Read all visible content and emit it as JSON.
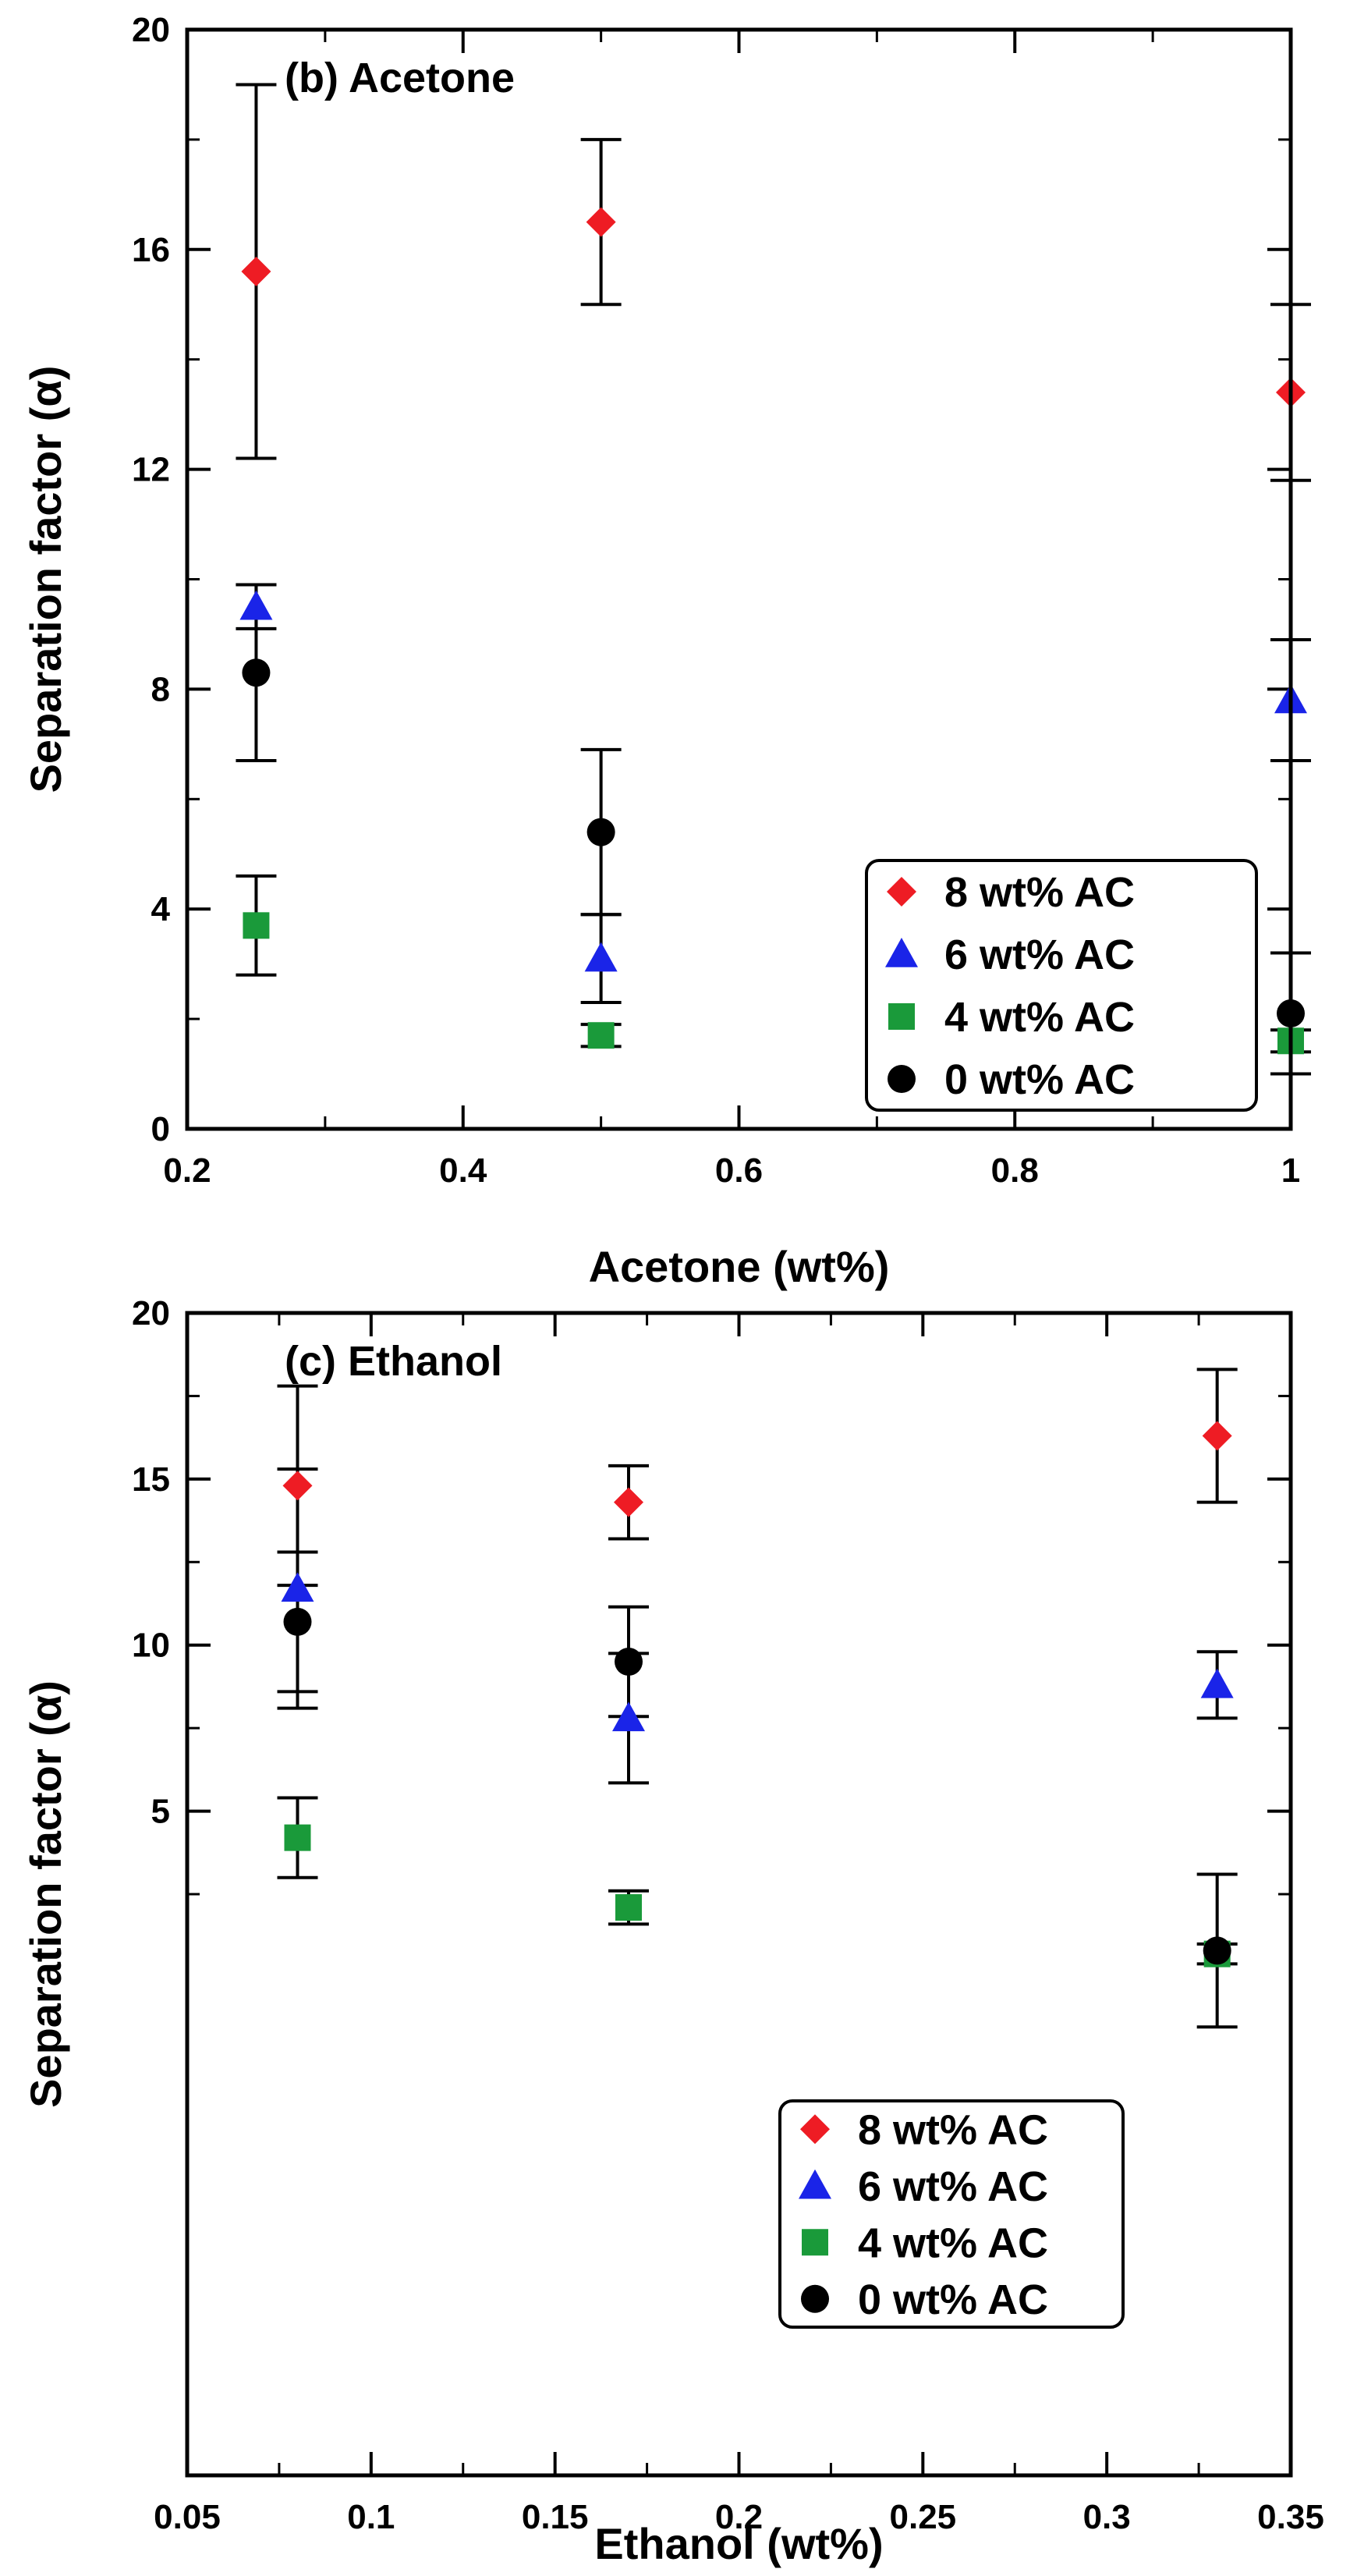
{
  "colors": {
    "8 wt% AC": "#ee1c24",
    "6 wt% AC": "#1a24e8",
    "4 wt% AC": "#1a9a3a",
    "0 wt% AC": "#000000"
  },
  "markers": {
    "8 wt% AC": "diamond",
    "6 wt% AC": "triangle",
    "4 wt% AC": "square",
    "0 wt% AC": "circle"
  },
  "chart_data": [
    {
      "type": "scatter",
      "panel_label": "(b) Acetone",
      "xlabel": "Acetone (wt%)",
      "ylabel": "Separation factor (α)",
      "xlim": [
        0.2,
        1.0
      ],
      "ylim": [
        0,
        20
      ],
      "xticks": [
        0.2,
        0.4,
        0.6,
        0.8,
        1.0
      ],
      "xtick_labels": [
        "0.2",
        "0.4",
        "0.6",
        "0.8",
        "1"
      ],
      "yticks": [
        0,
        4,
        8,
        12,
        16,
        20
      ],
      "ytick_labels": [
        "0",
        "4",
        "8",
        "12",
        "16",
        "20"
      ],
      "legend": [
        "8 wt% AC",
        "6 wt% AC",
        "4 wt% AC",
        "0 wt% AC"
      ],
      "legend_position": "bottom-right",
      "series": [
        {
          "name": "8 wt% AC",
          "x": [
            0.25,
            0.5,
            1.0
          ],
          "y": [
            15.6,
            16.5,
            13.4
          ],
          "err": [
            3.4,
            1.5,
            1.6
          ]
        },
        {
          "name": "6 wt% AC",
          "x": [
            0.25,
            0.5,
            1.0
          ],
          "y": [
            9.5,
            3.1,
            7.8
          ],
          "err": [
            0.4,
            0.8,
            1.1
          ]
        },
        {
          "name": "4 wt% AC",
          "x": [
            0.25,
            0.5,
            1.0
          ],
          "y": [
            3.7,
            1.7,
            1.6
          ],
          "err": [
            0.9,
            0.2,
            0.2
          ]
        },
        {
          "name": "0 wt% AC",
          "x": [
            0.25,
            0.5,
            1.0
          ],
          "y": [
            8.3,
            5.4,
            2.1
          ],
          "err": [
            1.6,
            1.5,
            1.1
          ]
        }
      ]
    },
    {
      "type": "scatter",
      "panel_label": "(c) Ethanol",
      "xlabel": "Ethanol (wt%)",
      "ylabel": "Separation factor (α)",
      "xlim": [
        0.05,
        0.35
      ],
      "ylim": [
        -15,
        20
      ],
      "xticks": [
        0.05,
        0.1,
        0.15,
        0.2,
        0.25,
        0.3,
        0.35
      ],
      "xtick_labels": [
        "0.05",
        "0.1",
        "0.15",
        "0.2",
        "0.25",
        "0.3",
        "0.35"
      ],
      "yticks": [
        5,
        10,
        15,
        20
      ],
      "ytick_labels": [
        "5",
        "10",
        "15",
        "20"
      ],
      "legend": [
        "8 wt% AC",
        "6 wt% AC",
        "4 wt% AC",
        "0 wt% AC"
      ],
      "legend_position": "bottom-right",
      "series": [
        {
          "name": "8 wt% AC",
          "x": [
            0.08,
            0.17,
            0.33
          ],
          "y": [
            14.8,
            14.3,
            16.3
          ],
          "err": [
            3.0,
            1.1,
            2.0
          ]
        },
        {
          "name": "6 wt% AC",
          "x": [
            0.08,
            0.17,
            0.33
          ],
          "y": [
            11.7,
            7.8,
            8.8
          ],
          "err": [
            3.6,
            1.95,
            1.0
          ]
        },
        {
          "name": "4 wt% AC",
          "x": [
            0.08,
            0.17,
            0.33
          ],
          "y": [
            4.2,
            2.1,
            0.7
          ],
          "err": [
            1.2,
            0.5,
            0.3
          ]
        },
        {
          "name": "0 wt% AC",
          "x": [
            0.08,
            0.17,
            0.33
          ],
          "y": [
            10.7,
            9.5,
            0.8
          ],
          "err": [
            2.1,
            1.65,
            2.3
          ]
        }
      ]
    }
  ]
}
